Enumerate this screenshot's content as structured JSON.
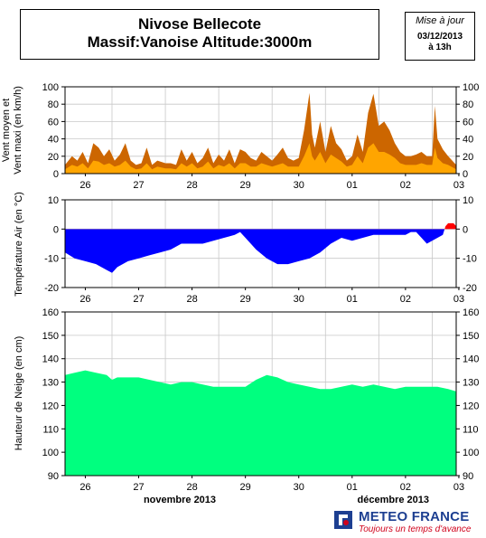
{
  "header": {
    "title_line1": "Nivose Bellecote",
    "title_line2": "Massif:Vanoise Altitude:3000m",
    "update_label": "Mise à jour",
    "update_date": "03/12/2013",
    "update_hour": "à 13h"
  },
  "brand": {
    "name": "METEO FRANCE",
    "tagline": "Toujours un temps d'avance"
  },
  "colors": {
    "wind_max": "#cc6600",
    "wind_mean": "#ffa500",
    "temp_negative": "#0000ff",
    "temp_positive": "#ff0000",
    "snow": "#00ff7f",
    "brand_blue": "#1d3f91",
    "brand_red": "#d0021b"
  },
  "chart_data": [
    {
      "type": "area",
      "ylabel": "Vent moyen et\nVent maxi (en km/h)",
      "ylim": [
        0,
        100
      ],
      "yticks": [
        0,
        20,
        40,
        60,
        80,
        100
      ],
      "xlim": [
        25.62,
        32.95
      ],
      "xtick_labels": [
        "26",
        "27",
        "28",
        "29",
        "30",
        "01",
        "02",
        "03"
      ],
      "grid": true,
      "series": [
        {
          "key": "max",
          "x": [
            25.62,
            25.75,
            25.85,
            25.95,
            26.05,
            26.15,
            26.25,
            26.35,
            26.45,
            26.55,
            26.65,
            26.75,
            26.85,
            26.95,
            27.05,
            27.15,
            27.25,
            27.35,
            27.5,
            27.6,
            27.7,
            27.8,
            27.9,
            28.0,
            28.1,
            28.2,
            28.3,
            28.4,
            28.5,
            28.6,
            28.7,
            28.8,
            28.9,
            29.0,
            29.1,
            29.2,
            29.3,
            29.4,
            29.5,
            29.6,
            29.7,
            29.8,
            29.9,
            30.0,
            30.1,
            30.2,
            30.25,
            30.3,
            30.4,
            30.5,
            30.6,
            30.7,
            30.8,
            30.9,
            31.0,
            31.1,
            31.2,
            31.3,
            31.4,
            31.5,
            31.6,
            31.7,
            31.8,
            31.9,
            32.0,
            32.1,
            32.2,
            32.3,
            32.4,
            32.5,
            32.55,
            32.6,
            32.7,
            32.8,
            32.95
          ],
          "values": [
            10,
            20,
            15,
            25,
            12,
            35,
            30,
            20,
            28,
            15,
            22,
            35,
            15,
            10,
            12,
            30,
            10,
            15,
            12,
            12,
            10,
            28,
            15,
            25,
            12,
            18,
            30,
            12,
            22,
            15,
            28,
            12,
            28,
            25,
            18,
            15,
            25,
            20,
            15,
            22,
            30,
            18,
            15,
            18,
            50,
            93,
            45,
            30,
            60,
            25,
            55,
            35,
            28,
            15,
            20,
            45,
            25,
            70,
            92,
            55,
            60,
            50,
            35,
            25,
            20,
            20,
            22,
            25,
            20,
            20,
            78,
            40,
            28,
            20,
            10
          ]
        },
        {
          "key": "mean",
          "x": [
            25.62,
            25.75,
            25.85,
            25.95,
            26.05,
            26.15,
            26.25,
            26.35,
            26.45,
            26.55,
            26.65,
            26.75,
            26.85,
            26.95,
            27.05,
            27.15,
            27.25,
            27.35,
            27.5,
            27.6,
            27.7,
            27.8,
            27.9,
            28.0,
            28.1,
            28.2,
            28.3,
            28.4,
            28.5,
            28.6,
            28.7,
            28.8,
            28.9,
            29.0,
            29.1,
            29.2,
            29.3,
            29.4,
            29.5,
            29.6,
            29.7,
            29.8,
            29.9,
            30.0,
            30.1,
            30.2,
            30.25,
            30.3,
            30.4,
            30.5,
            30.6,
            30.7,
            30.8,
            30.9,
            31.0,
            31.1,
            31.2,
            31.3,
            31.4,
            31.5,
            31.6,
            31.7,
            31.8,
            31.9,
            32.0,
            32.1,
            32.2,
            32.3,
            32.4,
            32.5,
            32.55,
            32.6,
            32.7,
            32.8,
            32.95
          ],
          "values": [
            5,
            10,
            8,
            12,
            6,
            15,
            14,
            10,
            12,
            8,
            10,
            15,
            8,
            5,
            6,
            12,
            5,
            8,
            6,
            6,
            5,
            12,
            8,
            12,
            6,
            8,
            14,
            6,
            10,
            8,
            12,
            6,
            12,
            12,
            8,
            8,
            12,
            10,
            8,
            10,
            12,
            8,
            8,
            8,
            20,
            35,
            20,
            15,
            25,
            12,
            22,
            18,
            14,
            8,
            10,
            20,
            12,
            30,
            35,
            25,
            25,
            22,
            18,
            12,
            10,
            10,
            10,
            12,
            10,
            10,
            30,
            18,
            12,
            10,
            5
          ]
        }
      ]
    },
    {
      "type": "area",
      "ylabel": "Température Air (en °C)",
      "ylim": [
        -20,
        10
      ],
      "yticks": [
        -20,
        -10,
        0,
        10
      ],
      "xlim": [
        25.62,
        32.95
      ],
      "xtick_labels": [
        "26",
        "27",
        "28",
        "29",
        "30",
        "01",
        "02",
        "03"
      ],
      "grid": true,
      "series": [
        {
          "key": "temperature",
          "x": [
            25.62,
            25.8,
            26.0,
            26.2,
            26.4,
            26.5,
            26.6,
            26.7,
            26.8,
            27.0,
            27.2,
            27.4,
            27.6,
            27.8,
            28.0,
            28.2,
            28.4,
            28.6,
            28.8,
            28.9,
            29.0,
            29.2,
            29.4,
            29.6,
            29.8,
            30.0,
            30.2,
            30.4,
            30.6,
            30.8,
            31.0,
            31.2,
            31.4,
            31.6,
            31.8,
            32.0,
            32.1,
            32.2,
            32.3,
            32.4,
            32.5,
            32.6,
            32.7,
            32.75,
            32.8,
            32.9,
            32.95
          ],
          "values": [
            -8,
            -10,
            -11,
            -12,
            -14,
            -15,
            -13,
            -12,
            -11,
            -10,
            -9,
            -8,
            -7,
            -5,
            -5,
            -5,
            -4,
            -3,
            -2,
            -1,
            -3,
            -7,
            -10,
            -12,
            -12,
            -11,
            -10,
            -8,
            -5,
            -3,
            -4,
            -3,
            -2,
            -2,
            -2,
            -2,
            -1,
            -1,
            -3,
            -5,
            -4,
            -3,
            -2,
            1,
            2,
            2,
            1
          ]
        }
      ]
    },
    {
      "type": "area",
      "ylabel": "Hauteur de Neige (en cm)",
      "ylim": [
        90,
        160
      ],
      "yticks": [
        90,
        100,
        110,
        120,
        130,
        140,
        150,
        160
      ],
      "xlim": [
        25.62,
        32.95
      ],
      "xtick_labels": [
        "26",
        "27",
        "28",
        "29",
        "30",
        "01",
        "02",
        "03"
      ],
      "month_labels": [
        {
          "text": "novembre 2013",
          "at": 27.77
        },
        {
          "text": "décembre 2013",
          "at": 31.77
        }
      ],
      "grid": true,
      "series": [
        {
          "key": "snow_depth",
          "x": [
            25.62,
            25.8,
            26.0,
            26.2,
            26.4,
            26.5,
            26.6,
            26.8,
            27.0,
            27.2,
            27.4,
            27.6,
            27.8,
            28.0,
            28.2,
            28.4,
            28.6,
            28.8,
            29.0,
            29.2,
            29.4,
            29.6,
            29.8,
            30.0,
            30.2,
            30.4,
            30.6,
            30.8,
            31.0,
            31.2,
            31.4,
            31.6,
            31.8,
            32.0,
            32.2,
            32.4,
            32.6,
            32.8,
            32.95
          ],
          "values": [
            133,
            134,
            135,
            134,
            133,
            131,
            132,
            132,
            132,
            131,
            130,
            129,
            130,
            130,
            129,
            128,
            128,
            128,
            128,
            131,
            133,
            132,
            130,
            129,
            128,
            127,
            127,
            128,
            129,
            128,
            129,
            128,
            127,
            128,
            128,
            128,
            128,
            127,
            126
          ]
        }
      ]
    }
  ]
}
